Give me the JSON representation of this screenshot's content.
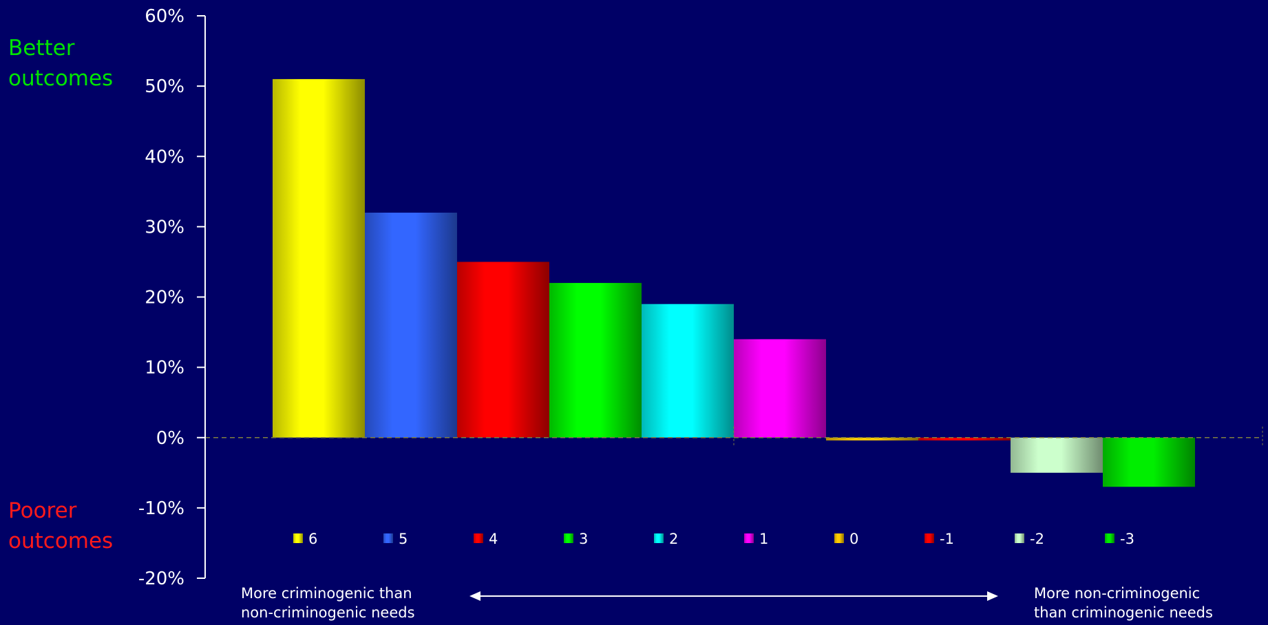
{
  "annotations": {
    "top_left": [
      "Better",
      "outcomes"
    ],
    "bottom_left": [
      "Poorer",
      "outcomes"
    ],
    "bottom_note_left": [
      "More criminogenic than",
      "non-criminogenic needs"
    ],
    "bottom_note_right": [
      "More non-criminogenic",
      "than criminogenic needs"
    ]
  },
  "colors": {
    "background": "#000066",
    "axis": "#ffffff",
    "zero_line": "#808040",
    "better_label": "#00e600",
    "poorer_label": "#ff1a1a"
  },
  "chart_data": {
    "type": "bar",
    "title": "",
    "xlabel": "",
    "ylabel": "",
    "ylim": [
      -20,
      60
    ],
    "y_ticks": [
      -20,
      -10,
      0,
      10,
      20,
      30,
      40,
      50,
      60
    ],
    "tick_format": "{v}%",
    "legend_position": "bottom",
    "grid": false,
    "bars": [
      {
        "label": "6",
        "value": 51,
        "color": "#ffff00"
      },
      {
        "label": "5",
        "value": 32,
        "color": "#3366ff"
      },
      {
        "label": "4",
        "value": 25,
        "color": "#ff0000"
      },
      {
        "label": "3",
        "value": 22,
        "color": "#00ff00"
      },
      {
        "label": "2",
        "value": 19,
        "color": "#00ffff"
      },
      {
        "label": "1",
        "value": 14,
        "color": "#ff00ff"
      },
      {
        "label": "0",
        "value": -0.4,
        "color": "#ffcc00"
      },
      {
        "label": "-1",
        "value": -0.4,
        "color": "#ff0000"
      },
      {
        "label": "-2",
        "value": -5,
        "color": "#ccffcc"
      },
      {
        "label": "-3",
        "value": -7,
        "color": "#00ee00"
      }
    ]
  }
}
